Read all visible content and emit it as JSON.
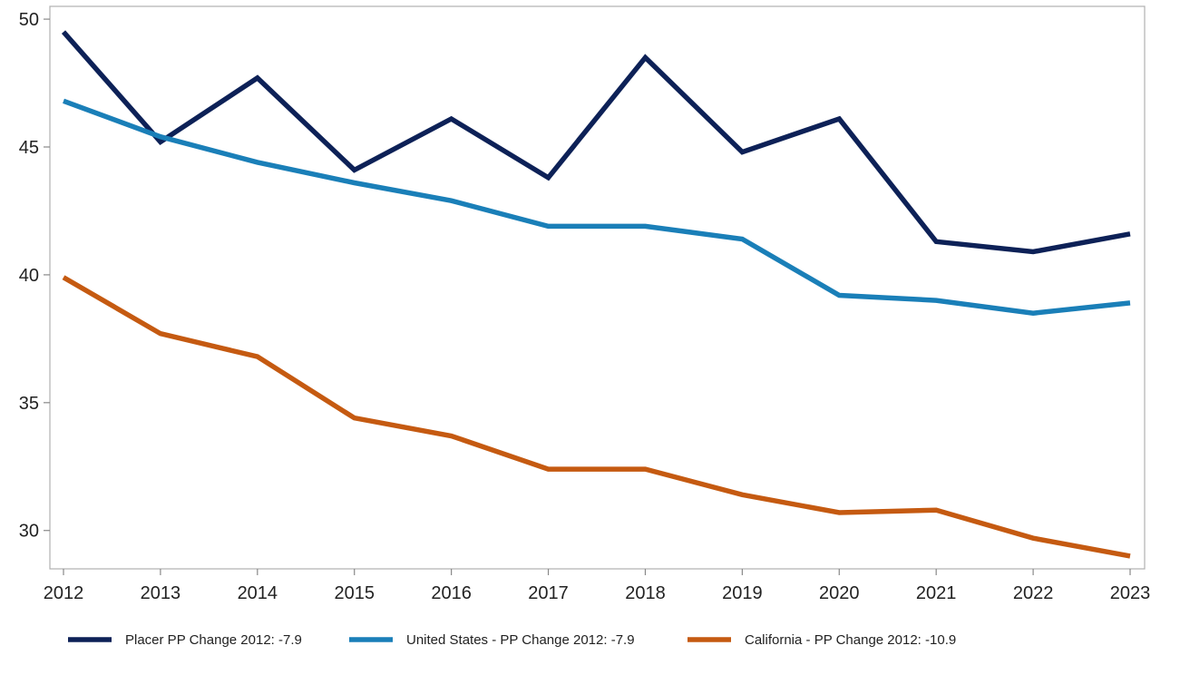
{
  "chart_data": {
    "type": "line",
    "title": "",
    "xlabel": "",
    "ylabel": "",
    "x": [
      2012,
      2013,
      2014,
      2015,
      2016,
      2017,
      2018,
      2019,
      2020,
      2021,
      2022,
      2023
    ],
    "xlim": [
      2012,
      2023
    ],
    "ylim": [
      28.5,
      50.5
    ],
    "yticks": [
      30,
      35,
      40,
      45,
      50
    ],
    "grid": false,
    "legend_position": "bottom",
    "series": [
      {
        "name": "Placer PP Change 2012: -7.9",
        "color": "#0d2157",
        "values": [
          49.5,
          45.2,
          47.7,
          44.1,
          46.1,
          43.8,
          48.5,
          44.8,
          46.1,
          41.3,
          40.9,
          41.6
        ]
      },
      {
        "name": "United States - PP Change 2012: -7.9",
        "color": "#1a7fb8",
        "values": [
          46.8,
          45.4,
          44.4,
          43.6,
          42.9,
          41.9,
          41.9,
          41.4,
          39.2,
          39.0,
          38.5,
          38.9
        ]
      },
      {
        "name": "California - PP Change 2012: -10.9",
        "color": "#c55a11",
        "values": [
          39.9,
          37.7,
          36.8,
          34.4,
          33.7,
          32.4,
          32.4,
          31.4,
          30.7,
          30.8,
          29.7,
          29.0
        ]
      }
    ]
  }
}
